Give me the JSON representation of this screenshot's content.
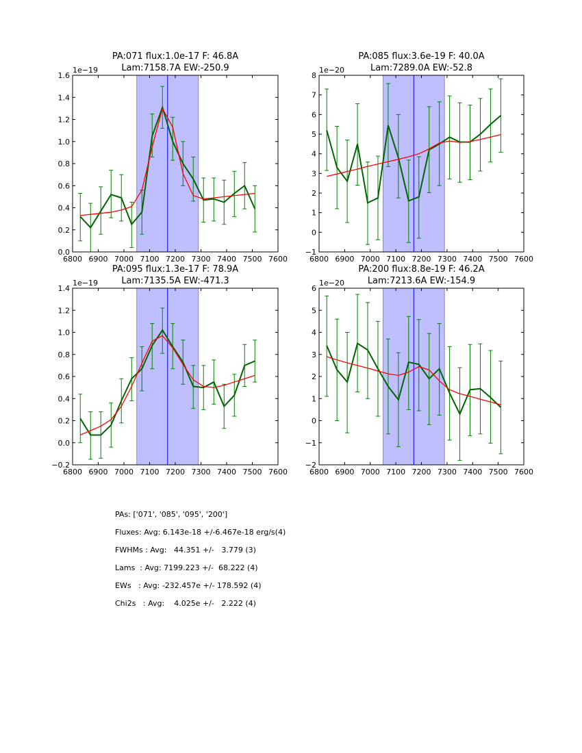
{
  "chart_data": [
    {
      "type": "line",
      "title": [
        "PA:071 flux:1.0e-17 F: 46.8A",
        "Lam:7158.7A EW:-250.9"
      ],
      "multiplier": "1e−19",
      "xlim": [
        6800,
        7600
      ],
      "ylim": [
        0,
        1.6
      ],
      "xticks": [
        6800,
        6900,
        7000,
        7100,
        7200,
        7300,
        7400,
        7500,
        7600
      ],
      "yticks": [
        0,
        0.2,
        0.4,
        0.6,
        0.8,
        1.0,
        1.2,
        1.4,
        1.6
      ],
      "ytick_labels": [
        "0.0",
        "0.2",
        "0.4",
        "0.6",
        "0.8",
        "1.0",
        "1.2",
        "1.4",
        "1.6"
      ],
      "shade": [
        7050,
        7290
      ],
      "vline": 7170,
      "x": [
        6830,
        6870,
        6910,
        6950,
        6990,
        7030,
        7070,
        7110,
        7150,
        7190,
        7230,
        7270,
        7310,
        7350,
        7390,
        7430,
        7470,
        7510
      ],
      "data": [
        0.32,
        0.22,
        0.37,
        0.52,
        0.49,
        0.25,
        0.36,
        1.05,
        1.31,
        1.0,
        0.8,
        0.66,
        0.47,
        0.48,
        0.45,
        0.53,
        0.6,
        0.39
      ],
      "yerr": [
        [
          0.1,
          0.53
        ],
        [
          0,
          0.44
        ],
        [
          0.16,
          0.59
        ],
        [
          0.31,
          0.74
        ],
        [
          0.28,
          0.7
        ],
        [
          0.04,
          0.45
        ],
        [
          0.16,
          0.56
        ],
        [
          0.86,
          1.25
        ],
        [
          1.12,
          1.5
        ],
        [
          0.83,
          1.22
        ],
        [
          0.6,
          1.0
        ],
        [
          0.46,
          0.86
        ],
        [
          0.27,
          0.67
        ],
        [
          0.28,
          0.67
        ],
        [
          0.25,
          0.65
        ],
        [
          0.32,
          0.73
        ],
        [
          0.39,
          0.81
        ],
        [
          0.18,
          0.6
        ]
      ],
      "fit": [
        0.33,
        0.34,
        0.35,
        0.36,
        0.38,
        0.41,
        0.56,
        0.95,
        1.3,
        1.13,
        0.71,
        0.51,
        0.48,
        0.49,
        0.5,
        0.51,
        0.52,
        0.53
      ]
    },
    {
      "type": "line",
      "title": [
        "PA:085 flux:3.6e-19 F: 40.0A",
        "Lam:7289.0A EW:-52.8"
      ],
      "multiplier": "1e−20",
      "xlim": [
        6800,
        7600
      ],
      "ylim": [
        -1,
        8
      ],
      "xticks": [
        6800,
        6900,
        7000,
        7100,
        7200,
        7300,
        7400,
        7500,
        7600
      ],
      "yticks": [
        -1,
        0,
        1,
        2,
        3,
        4,
        5,
        6,
        7,
        8
      ],
      "ytick_labels": [
        "−1",
        "0",
        "1",
        "2",
        "3",
        "4",
        "5",
        "6",
        "7",
        "8"
      ],
      "shade": [
        7050,
        7290
      ],
      "vline": 7170,
      "x": [
        6830,
        6870,
        6910,
        6950,
        6990,
        7030,
        7070,
        7110,
        7150,
        7190,
        7230,
        7270,
        7310,
        7350,
        7390,
        7430,
        7470,
        7510
      ],
      "data": [
        5.2,
        3.3,
        2.6,
        4.5,
        1.5,
        1.75,
        5.45,
        3.8,
        1.6,
        1.8,
        4.2,
        4.5,
        4.85,
        4.6,
        4.6,
        5.0,
        5.5,
        5.95
      ],
      "yerr": [
        [
          3.15,
          7.3
        ],
        [
          1.2,
          5.4
        ],
        [
          0.5,
          4.7
        ],
        [
          2.4,
          6.55
        ],
        [
          -0.62,
          3.58
        ],
        [
          -0.38,
          3.88
        ],
        [
          3.35,
          7.58
        ],
        [
          1.75,
          6.0
        ],
        [
          -0.52,
          3.68
        ],
        [
          -0.3,
          3.85
        ],
        [
          2.02,
          6.4
        ],
        [
          2.38,
          6.65
        ],
        [
          2.72,
          6.95
        ],
        [
          2.55,
          6.6
        ],
        [
          2.68,
          6.48
        ],
        [
          3.12,
          6.82
        ],
        [
          3.58,
          7.3
        ],
        [
          4.08,
          7.82
        ]
      ],
      "fit": [
        2.85,
        2.97,
        3.1,
        3.22,
        3.36,
        3.48,
        3.6,
        3.72,
        3.85,
        4.0,
        4.25,
        4.55,
        4.65,
        4.58,
        4.62,
        4.73,
        4.85,
        4.98
      ]
    },
    {
      "type": "line",
      "title": [
        "PA:095 flux:1.3e-17 F: 78.9A",
        "Lam:7135.5A EW:-471.3"
      ],
      "multiplier": "1e−19",
      "xlim": [
        6800,
        7600
      ],
      "ylim": [
        -0.2,
        1.4
      ],
      "xticks": [
        6800,
        6900,
        7000,
        7100,
        7200,
        7300,
        7400,
        7500,
        7600
      ],
      "yticks": [
        -0.2,
        0,
        0.2,
        0.4,
        0.6,
        0.8,
        1.0,
        1.2,
        1.4
      ],
      "ytick_labels": [
        "−0.2",
        "0.0",
        "0.2",
        "0.4",
        "0.6",
        "0.8",
        "1.0",
        "1.2",
        "1.4"
      ],
      "shade": [
        7050,
        7290
      ],
      "vline": 7170,
      "x": [
        6830,
        6870,
        6910,
        6950,
        6990,
        7030,
        7070,
        7110,
        7150,
        7190,
        7230,
        7270,
        7310,
        7350,
        7390,
        7430,
        7470,
        7510
      ],
      "data": [
        0.22,
        0.07,
        0.07,
        0.16,
        0.38,
        0.58,
        0.67,
        0.88,
        1.02,
        0.87,
        0.73,
        0.51,
        0.5,
        0.55,
        0.33,
        0.43,
        0.7,
        0.74
      ],
      "yerr": [
        [
          0.0,
          0.44
        ],
        [
          -0.15,
          0.28
        ],
        [
          -0.14,
          0.28
        ],
        [
          -0.04,
          0.36
        ],
        [
          0.18,
          0.58
        ],
        [
          0.38,
          0.77
        ],
        [
          0.47,
          0.87
        ],
        [
          0.67,
          1.08
        ],
        [
          0.81,
          1.22
        ],
        [
          0.67,
          1.08
        ],
        [
          0.53,
          0.93
        ],
        [
          0.31,
          0.7
        ],
        [
          0.3,
          0.7
        ],
        [
          0.35,
          0.75
        ],
        [
          0.13,
          0.53
        ],
        [
          0.24,
          0.62
        ],
        [
          0.51,
          0.89
        ],
        [
          0.55,
          0.93
        ]
      ],
      "fit": [
        0.07,
        0.11,
        0.15,
        0.21,
        0.33,
        0.51,
        0.72,
        0.92,
        0.97,
        0.86,
        0.71,
        0.57,
        0.51,
        0.5,
        0.52,
        0.55,
        0.58,
        0.61
      ]
    },
    {
      "type": "line",
      "title": [
        "PA:200 flux:8.8e-19 F: 46.2A",
        "Lam:7213.6A EW:-154.9"
      ],
      "multiplier": "1e−20",
      "xlim": [
        6800,
        7600
      ],
      "ylim": [
        -2,
        6
      ],
      "xticks": [
        6800,
        6900,
        7000,
        7100,
        7200,
        7300,
        7400,
        7500,
        7600
      ],
      "yticks": [
        -2,
        -1,
        0,
        1,
        2,
        3,
        4,
        5,
        6
      ],
      "ytick_labels": [
        "−2",
        "−1",
        "0",
        "1",
        "2",
        "3",
        "4",
        "5",
        "6"
      ],
      "shade": [
        7050,
        7290
      ],
      "vline": 7170,
      "x": [
        6830,
        6870,
        6910,
        6950,
        6990,
        7030,
        7070,
        7110,
        7150,
        7190,
        7230,
        7270,
        7310,
        7350,
        7390,
        7430,
        7470,
        7510
      ],
      "data": [
        3.4,
        2.3,
        1.75,
        3.5,
        3.2,
        2.35,
        1.55,
        0.95,
        2.65,
        2.55,
        1.9,
        2.35,
        1.25,
        0.3,
        1.4,
        1.45,
        1.05,
        0.6
      ],
      "yerr": [
        [
          1.1,
          5.65
        ],
        [
          0.0,
          4.6
        ],
        [
          -0.55,
          4.0
        ],
        [
          1.3,
          5.72
        ],
        [
          1.0,
          5.35
        ],
        [
          0.2,
          4.5
        ],
        [
          -0.6,
          3.7
        ],
        [
          -1.18,
          3.08
        ],
        [
          0.5,
          4.72
        ],
        [
          0.45,
          4.58
        ],
        [
          -0.18,
          3.95
        ],
        [
          0.25,
          4.4
        ],
        [
          -0.88,
          3.35
        ],
        [
          -1.8,
          2.4
        ],
        [
          -0.68,
          3.45
        ],
        [
          -0.6,
          3.48
        ],
        [
          -1.02,
          3.18
        ],
        [
          -1.5,
          2.7
        ]
      ],
      "fit": [
        2.9,
        2.75,
        2.62,
        2.5,
        2.38,
        2.25,
        2.12,
        2.05,
        2.2,
        2.45,
        2.3,
        1.8,
        1.4,
        1.22,
        1.1,
        0.97,
        0.85,
        0.72
      ]
    }
  ],
  "colors": {
    "data": "#006400",
    "errorbar": "#008000",
    "fit": "#ff0000",
    "shade": "#bfbfff",
    "vline": "#0000ff"
  },
  "stats": [
    "PAs: ['071', '085', '095', '200']",
    "Fluxes: Avg: 6.143e-18 +/-6.467e-18 erg/s(4)",
    "FWHMs : Avg:   44.351 +/-   3.779 (3)",
    "Lams  : Avg: 7199.223 +/-  68.222 (4)",
    "EWs   : Avg: -232.457e +/- 178.592 (4)",
    "Chi2s   : Avg:    4.025e +/-   2.222 (4)"
  ]
}
